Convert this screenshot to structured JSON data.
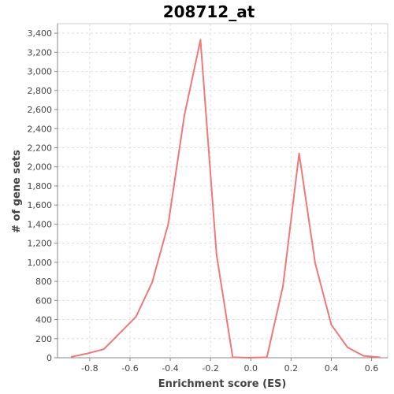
{
  "chart_data": {
    "type": "line",
    "title": "208712_at",
    "xlabel": "Enrichment score (ES)",
    "ylabel": "# of gene sets",
    "xlim": [
      -0.96,
      0.68
    ],
    "ylim": [
      0,
      3500
    ],
    "x_ticks": [
      -0.8,
      -0.6,
      -0.4,
      -0.2,
      0.0,
      0.2,
      0.4,
      0.6
    ],
    "x_tick_labels": [
      "-0.8",
      "-0.6",
      "-0.4",
      "-0.2",
      "0.0",
      "0.2",
      "0.4",
      "0.6"
    ],
    "y_ticks": [
      0,
      200,
      400,
      600,
      800,
      1000,
      1200,
      1400,
      1600,
      1800,
      2000,
      2200,
      2400,
      2600,
      2800,
      3000,
      3200,
      3400
    ],
    "y_tick_labels": [
      "0",
      "200",
      "400",
      "600",
      "800",
      "1,000",
      "1,200",
      "1,400",
      "1,600",
      "1,800",
      "2,000",
      "2,200",
      "2,400",
      "2,600",
      "2,800",
      "3,000",
      "3,200",
      "3,400"
    ],
    "grid": true,
    "series": [
      {
        "color": "#f07878",
        "x": [
          -0.89,
          -0.81,
          -0.73,
          -0.57,
          -0.49,
          -0.41,
          -0.33,
          -0.25,
          -0.17,
          -0.09,
          -0.01,
          0.08,
          0.16,
          0.24,
          0.32,
          0.4,
          0.48,
          0.56,
          0.64
        ],
        "y": [
          10,
          45,
          90,
          430,
          790,
          1400,
          2540,
          3330,
          1080,
          5,
          0,
          5,
          750,
          2140,
          990,
          345,
          110,
          20,
          5
        ]
      }
    ]
  }
}
